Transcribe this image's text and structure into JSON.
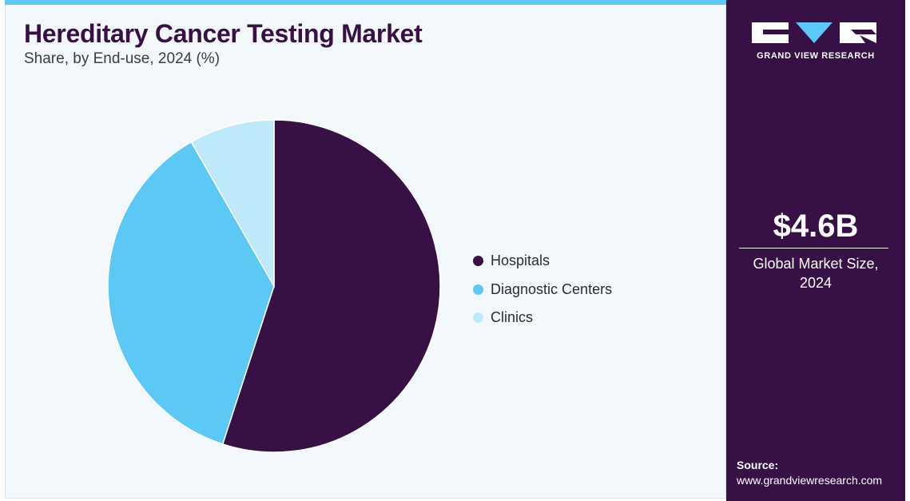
{
  "header": {
    "title": "Hereditary Cancer Testing Market",
    "subtitle": "Share, by End-use, 2024 (%)"
  },
  "chart_data": {
    "type": "pie",
    "title": "Hereditary Cancer Testing Market",
    "subtitle": "Share, by End-use, 2024 (%)",
    "categories": [
      "Hospitals",
      "Diagnostic Centers",
      "Clinics"
    ],
    "values": [
      55.0,
      36.7,
      8.3
    ],
    "colors": [
      "#371045",
      "#5bc8f5",
      "#bde9fa"
    ],
    "legend": "right",
    "start": "top, clockwise"
  },
  "sidebar": {
    "logo_text": "GRAND VIEW RESEARCH",
    "market_value": "$4.6B",
    "market_label_line1": "Global Market Size,",
    "market_label_line2": "2024",
    "source_title": "Source:",
    "source_url": "www.grandviewresearch.com"
  },
  "colors": {
    "brand_purple": "#371045",
    "accent_blue": "#5bc8f5",
    "light_blue": "#bde9fa",
    "card_bg": "#f2f8fb"
  }
}
